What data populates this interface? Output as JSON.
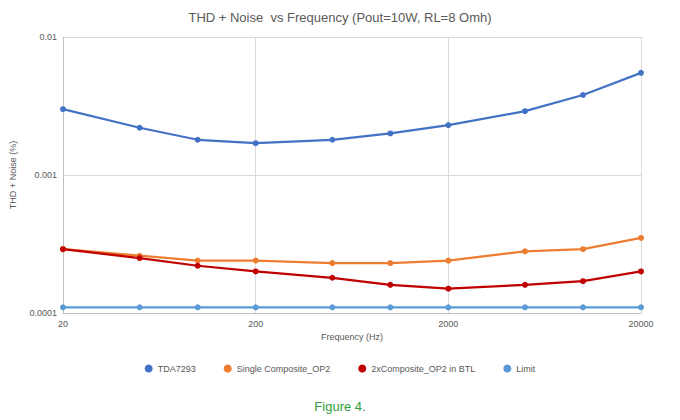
{
  "chart_data": {
    "type": "line",
    "title": "THD + Noise  vs Frequency (Pout=10W, RL=8 Omh)",
    "x_label": "Frequency (Hz)",
    "y_label": "THD + Noise (%)",
    "caption": "Figure 4.",
    "log": true,
    "grid": true,
    "legend": "bottom",
    "marker": "circle",
    "x": [
      20,
      50,
      100,
      200,
      500,
      1000,
      2000,
      5000,
      10000,
      20000
    ],
    "series": [
      {
        "name": "TDA7293",
        "color": "#4472c4",
        "values": [
          0.003,
          0.0022,
          0.0018,
          0.0017,
          0.0018,
          0.002,
          0.0023,
          0.0029,
          0.0038,
          0.0055
        ]
      },
      {
        "name": "Single Composite_OP2",
        "color": "#ed7d31",
        "values": [
          0.00029,
          0.00026,
          0.00024,
          0.00024,
          0.00023,
          0.00023,
          0.00024,
          0.00028,
          0.00029,
          0.00035
        ]
      },
      {
        "name": "2xComposite_OP2 in BTL",
        "color": "#c00000",
        "values": [
          0.00029,
          0.00025,
          0.00022,
          0.0002,
          0.00018,
          0.00016,
          0.00015,
          0.00016,
          0.00017,
          0.0002
        ]
      },
      {
        "name": "Limit",
        "color": "#5b9bd5",
        "values": [
          0.00011,
          0.00011,
          0.00011,
          0.00011,
          0.00011,
          0.00011,
          0.00011,
          0.00011,
          0.00011,
          0.00011
        ]
      }
    ],
    "xlim": [
      20,
      20000
    ],
    "xticks": [
      20,
      200,
      2000,
      20000
    ],
    "ylim": [
      0.0001,
      0.01
    ],
    "yticks": [
      0.0001,
      0.001,
      0.01
    ]
  }
}
